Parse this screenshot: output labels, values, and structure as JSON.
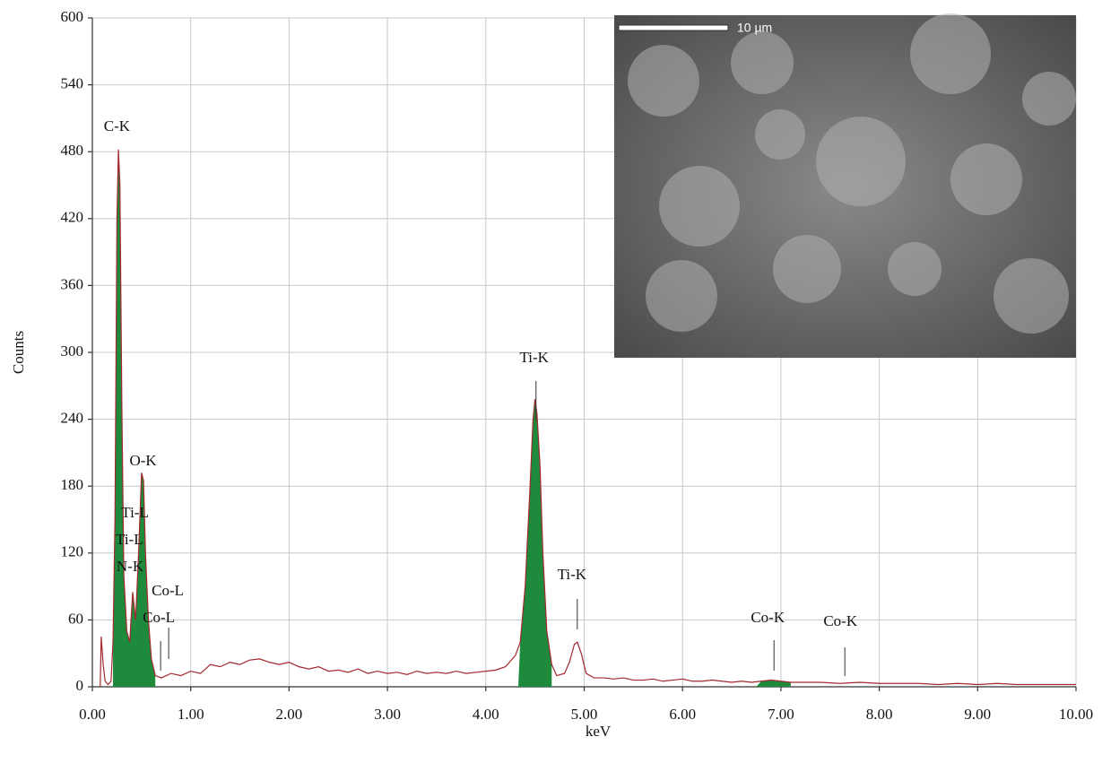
{
  "chart_data": {
    "type": "area",
    "x_label": "keV",
    "y_label": "Counts",
    "xlim": [
      0,
      10
    ],
    "ylim": [
      0,
      600
    ],
    "xticks": [
      {
        "value": 0,
        "label": "0.00"
      },
      {
        "value": 1,
        "label": "1.00"
      },
      {
        "value": 2,
        "label": "2.00"
      },
      {
        "value": 3,
        "label": "3.00"
      },
      {
        "value": 4,
        "label": "4.00"
      },
      {
        "value": 5,
        "label": "5.00"
      },
      {
        "value": 6,
        "label": "6.00"
      },
      {
        "value": 7,
        "label": "7.00"
      },
      {
        "value": 8,
        "label": "8.00"
      },
      {
        "value": 9,
        "label": "9.00"
      },
      {
        "value": 10,
        "label": "10.00"
      }
    ],
    "yticks": [
      0,
      60,
      120,
      180,
      240,
      300,
      360,
      420,
      480,
      540,
      600
    ],
    "grid": true,
    "line_color": "#a3282e",
    "fill_color": "#1e8a3c",
    "fill_ranges": [
      [
        0.21,
        0.64
      ],
      [
        4.33,
        4.67
      ],
      [
        6.75,
        7.1
      ]
    ],
    "x": [
      0.08,
      0.09,
      0.11,
      0.13,
      0.16,
      0.19,
      0.21,
      0.23,
      0.25,
      0.265,
      0.28,
      0.3,
      0.32,
      0.35,
      0.38,
      0.41,
      0.44,
      0.47,
      0.5,
      0.52,
      0.54,
      0.57,
      0.6,
      0.64,
      0.7,
      0.8,
      0.9,
      1.0,
      1.1,
      1.2,
      1.3,
      1.4,
      1.5,
      1.6,
      1.7,
      1.8,
      1.9,
      2.0,
      2.1,
      2.2,
      2.3,
      2.4,
      2.5,
      2.6,
      2.7,
      2.8,
      2.9,
      3.0,
      3.1,
      3.2,
      3.3,
      3.4,
      3.5,
      3.6,
      3.7,
      3.8,
      3.9,
      4.0,
      4.1,
      4.2,
      4.3,
      4.35,
      4.4,
      4.45,
      4.48,
      4.5,
      4.52,
      4.55,
      4.58,
      4.62,
      4.67,
      4.72,
      4.8,
      4.85,
      4.9,
      4.93,
      4.97,
      5.02,
      5.1,
      5.2,
      5.3,
      5.4,
      5.5,
      5.6,
      5.7,
      5.8,
      5.9,
      6.0,
      6.1,
      6.2,
      6.3,
      6.4,
      6.5,
      6.6,
      6.7,
      6.8,
      6.9,
      7.0,
      7.1,
      7.2,
      7.4,
      7.6,
      7.8,
      8.0,
      8.2,
      8.4,
      8.6,
      8.8,
      9.0,
      9.2,
      9.4,
      9.6,
      9.8,
      10.0
    ],
    "values": [
      0,
      45,
      20,
      5,
      2,
      5,
      40,
      150,
      420,
      482,
      450,
      250,
      100,
      50,
      40,
      85,
      60,
      120,
      192,
      185,
      120,
      60,
      25,
      10,
      8,
      12,
      10,
      14,
      12,
      20,
      18,
      22,
      20,
      24,
      25,
      22,
      20,
      22,
      18,
      16,
      18,
      14,
      15,
      13,
      16,
      12,
      14,
      12,
      13,
      11,
      14,
      12,
      13,
      12,
      14,
      12,
      13,
      14,
      15,
      18,
      28,
      40,
      90,
      180,
      240,
      258,
      245,
      200,
      120,
      50,
      20,
      10,
      12,
      22,
      38,
      40,
      30,
      12,
      8,
      8,
      7,
      8,
      6,
      6,
      7,
      5,
      6,
      7,
      5,
      5,
      6,
      5,
      4,
      5,
      4,
      5,
      6,
      5,
      4,
      4,
      4,
      3,
      4,
      3,
      3,
      3,
      2,
      3,
      2,
      3,
      2,
      2,
      2,
      2
    ],
    "annotations": [
      {
        "text": "C-K",
        "x": 0.277
      },
      {
        "text": "O-K",
        "x": 0.525
      },
      {
        "text": "Ti-L",
        "x": 0.452
      },
      {
        "text": "Ti-L",
        "x": 0.395
      },
      {
        "text": "N-K",
        "x": 0.392
      },
      {
        "text": "Co-L",
        "x": 0.776
      },
      {
        "text": "Co-L",
        "x": 0.694
      },
      {
        "text": "Ti-K",
        "x": 4.51
      },
      {
        "text": "Ti-K",
        "x": 4.93
      },
      {
        "text": "Co-K",
        "x": 6.93
      },
      {
        "text": "Co-K",
        "x": 7.65
      }
    ],
    "inset_scale_bar": "10 µm"
  }
}
